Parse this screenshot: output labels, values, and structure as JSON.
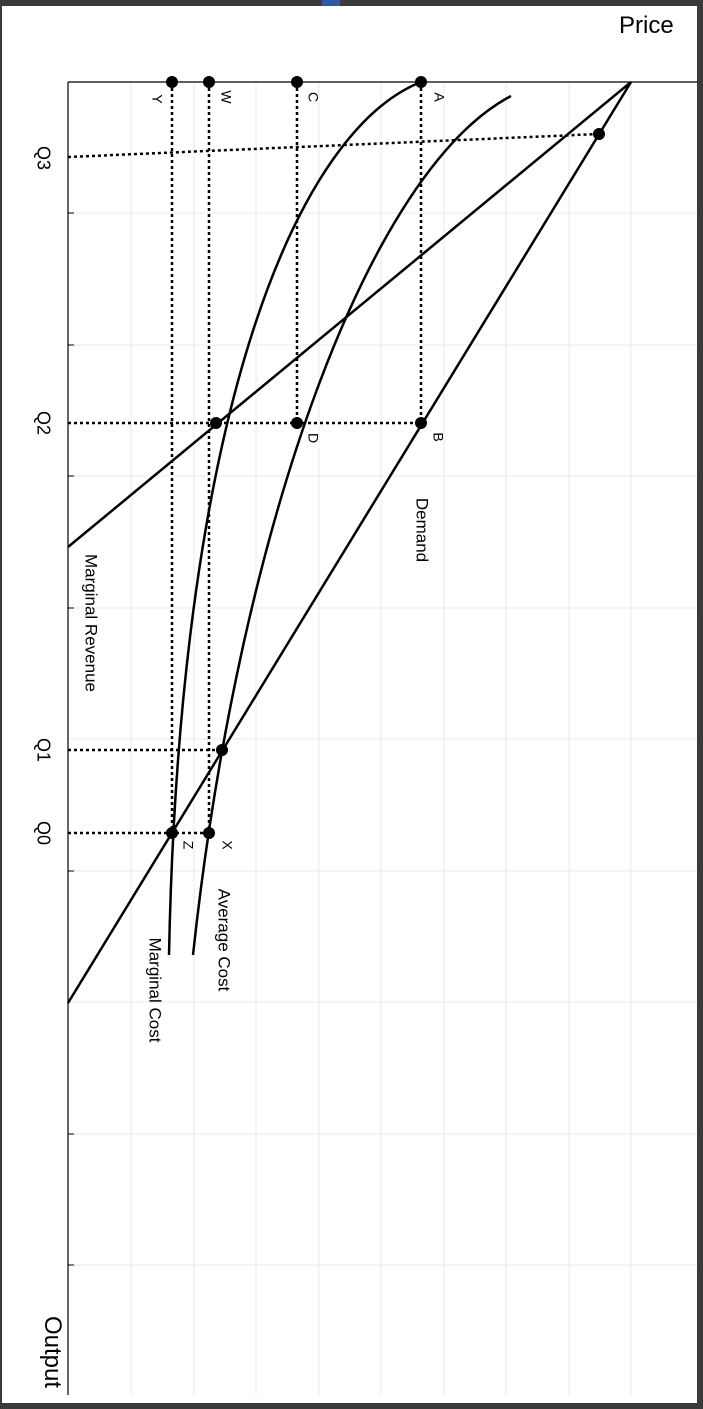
{
  "diagram": {
    "axes": {
      "price_label": "Price",
      "output_label": "Output"
    },
    "quantity_labels": [
      "Q3",
      "Q2",
      "Q1",
      "Q0"
    ],
    "price_levels": [
      "A",
      "C",
      "W",
      "Y"
    ],
    "point_labels": [
      "B",
      "D",
      "X",
      "Z"
    ],
    "curves": {
      "demand": "Demand",
      "marginal_revenue": "Marginal Revenue",
      "average_cost": "Average Cost",
      "marginal_cost": "Marginal Cost"
    }
  }
}
